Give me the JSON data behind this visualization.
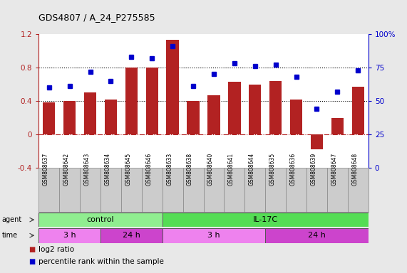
{
  "title": "GDS4807 / A_24_P275585",
  "samples": [
    "GSM808637",
    "GSM808642",
    "GSM808643",
    "GSM808634",
    "GSM808645",
    "GSM808646",
    "GSM808633",
    "GSM808638",
    "GSM808640",
    "GSM808641",
    "GSM808644",
    "GSM808635",
    "GSM808636",
    "GSM808639",
    "GSM808647",
    "GSM808648"
  ],
  "log2_ratio": [
    0.38,
    0.4,
    0.5,
    0.42,
    0.8,
    0.8,
    1.13,
    0.4,
    0.47,
    0.63,
    0.6,
    0.64,
    0.42,
    -0.18,
    0.2,
    0.57
  ],
  "percentile": [
    0.6,
    0.61,
    0.72,
    0.65,
    0.83,
    0.82,
    0.91,
    0.61,
    0.7,
    0.78,
    0.76,
    0.77,
    0.68,
    0.44,
    0.57,
    0.73
  ],
  "bar_color": "#b22222",
  "dot_color": "#0000cc",
  "ylim_left": [
    -0.4,
    1.2
  ],
  "ylim_right": [
    0.0,
    1.0
  ],
  "yticks_left": [
    -0.4,
    0.0,
    0.4,
    0.8,
    1.2
  ],
  "yticks_right": [
    0.0,
    0.25,
    0.5,
    0.75,
    1.0
  ],
  "ytick_labels_left": [
    "-0.4",
    "0",
    "0.4",
    "0.8",
    "1.2"
  ],
  "ytick_labels_right": [
    "0",
    "25",
    "50",
    "75",
    "100%"
  ],
  "hlines": [
    0.4,
    0.8
  ],
  "agent_groups": [
    {
      "label": "control",
      "start": 0,
      "end": 6,
      "color": "#90ee90"
    },
    {
      "label": "IL-17C",
      "start": 6,
      "end": 16,
      "color": "#55dd55"
    }
  ],
  "time_groups": [
    {
      "label": "3 h",
      "start": 0,
      "end": 3,
      "color": "#ee82ee"
    },
    {
      "label": "24 h",
      "start": 3,
      "end": 6,
      "color": "#cc44cc"
    },
    {
      "label": "3 h",
      "start": 6,
      "end": 11,
      "color": "#ee82ee"
    },
    {
      "label": "24 h",
      "start": 11,
      "end": 16,
      "color": "#cc44cc"
    }
  ],
  "legend_items": [
    {
      "label": "log2 ratio",
      "color": "#b22222"
    },
    {
      "label": "percentile rank within the sample",
      "color": "#0000cc"
    }
  ],
  "bg_color": "#e8e8e8",
  "plot_bg": "#ffffff",
  "sample_box_color": "#cccccc",
  "sample_box_edge": "#888888"
}
